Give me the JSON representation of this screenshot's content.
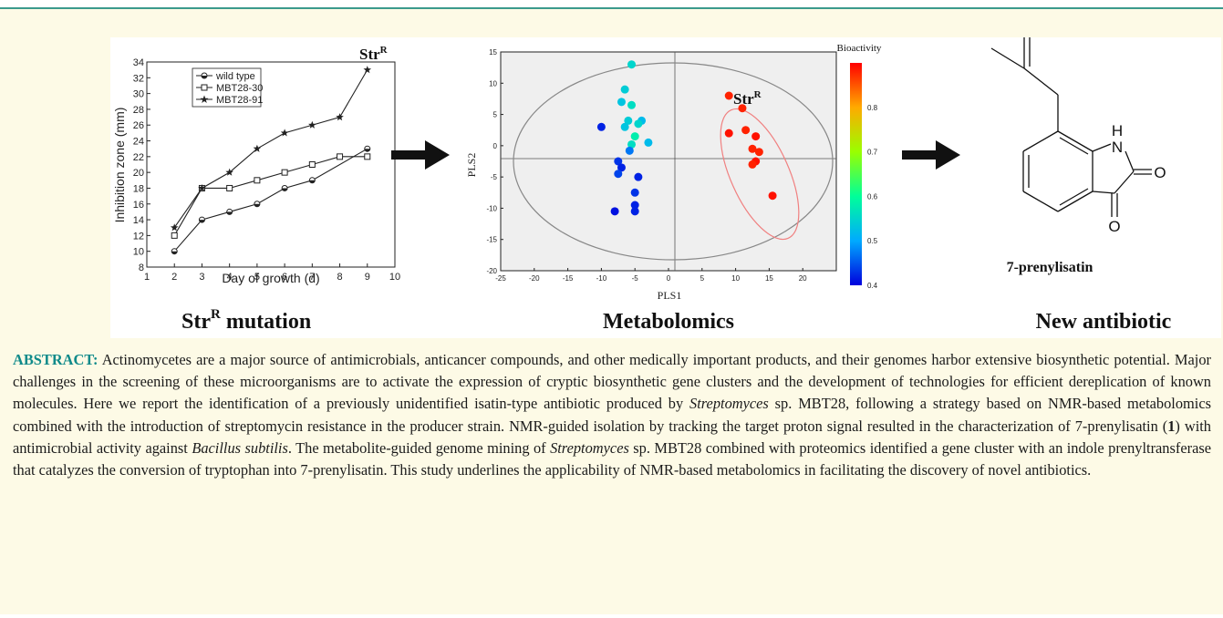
{
  "toc": {
    "panel_a": {
      "caption_main": "Str",
      "caption_sup": "R",
      "caption_rest": " mutation",
      "badge_main": "Str",
      "badge_sup": "R"
    },
    "panel_b": {
      "caption": "Metabolomics",
      "badge_main": "Str",
      "badge_sup": "R"
    },
    "panel_c": {
      "caption": "New antibiotic",
      "compound_name": "7-prenylisatin",
      "atom_H": "H",
      "atom_N": "N",
      "atom_O1": "O",
      "atom_O2": "O"
    }
  },
  "chart_data": [
    {
      "type": "line",
      "xlabel": "Day of growth (d)",
      "ylabel": "Inhibition zone (mm)",
      "xlim": [
        1,
        10
      ],
      "ylim": [
        8,
        34
      ],
      "xticks": [
        1,
        2,
        3,
        4,
        5,
        6,
        7,
        8,
        9,
        10
      ],
      "yticks": [
        8,
        10,
        12,
        14,
        16,
        18,
        20,
        22,
        24,
        26,
        28,
        30,
        32,
        34
      ],
      "legend": "top-left",
      "series": [
        {
          "name": "wild type",
          "marker": "half-circle",
          "x": [
            2,
            3,
            4,
            5,
            6,
            7,
            9
          ],
          "y": [
            10,
            14,
            15,
            16,
            18,
            19,
            23
          ]
        },
        {
          "name": "MBT28-30",
          "marker": "square",
          "x": [
            2,
            3,
            4,
            5,
            6,
            7,
            8,
            9
          ],
          "y": [
            12,
            18,
            18,
            19,
            20,
            21,
            22,
            22
          ]
        },
        {
          "name": "MBT28-91",
          "marker": "star",
          "x": [
            2,
            3,
            4,
            5,
            6,
            7,
            8,
            9
          ],
          "y": [
            13,
            18,
            20,
            23,
            25,
            26,
            27,
            33
          ]
        }
      ]
    },
    {
      "type": "scatter",
      "xlabel": "PLS1",
      "ylabel": "PLS2",
      "xlim": [
        -25,
        25
      ],
      "ylim": [
        -20,
        15
      ],
      "xticks": [
        -25,
        -20,
        -15,
        -10,
        -5,
        0,
        5,
        10,
        15,
        20
      ],
      "yticks": [
        -20,
        -15,
        -10,
        -5,
        0,
        5,
        10,
        15
      ],
      "colorbar": {
        "label": "Bioactivity",
        "min": 0.4,
        "max": 0.9,
        "ticks": [
          0.4,
          0.5,
          0.6,
          0.7,
          0.8
        ]
      },
      "points": [
        {
          "x": -5.5,
          "y": 13,
          "v": 0.55
        },
        {
          "x": -6.5,
          "y": 9,
          "v": 0.54
        },
        {
          "x": -7,
          "y": 7,
          "v": 0.53
        },
        {
          "x": -5.5,
          "y": 6.5,
          "v": 0.56
        },
        {
          "x": -4,
          "y": 4,
          "v": 0.52
        },
        {
          "x": -6,
          "y": 4,
          "v": 0.54
        },
        {
          "x": -4.5,
          "y": 3.5,
          "v": 0.55
        },
        {
          "x": -6.5,
          "y": 3,
          "v": 0.53
        },
        {
          "x": -3,
          "y": 0.5,
          "v": 0.52
        },
        {
          "x": -5,
          "y": 1.5,
          "v": 0.58
        },
        {
          "x": -5.5,
          "y": 0.2,
          "v": 0.56
        },
        {
          "x": -5.8,
          "y": -0.8,
          "v": 0.47
        },
        {
          "x": -10,
          "y": 3,
          "v": 0.42
        },
        {
          "x": -7.5,
          "y": -2.5,
          "v": 0.43
        },
        {
          "x": -7,
          "y": -3.5,
          "v": 0.42
        },
        {
          "x": -7.5,
          "y": -4.5,
          "v": 0.44
        },
        {
          "x": -4.5,
          "y": -5,
          "v": 0.42
        },
        {
          "x": -5,
          "y": -7.5,
          "v": 0.43
        },
        {
          "x": -5,
          "y": -9.5,
          "v": 0.42
        },
        {
          "x": -8,
          "y": -10.5,
          "v": 0.41
        },
        {
          "x": -5,
          "y": -10.5,
          "v": 0.42
        },
        {
          "x": 9,
          "y": 8,
          "v": 0.88
        },
        {
          "x": 11,
          "y": 6,
          "v": 0.88
        },
        {
          "x": 9,
          "y": 2,
          "v": 0.89
        },
        {
          "x": 11.5,
          "y": 2.5,
          "v": 0.88
        },
        {
          "x": 13,
          "y": 1.5,
          "v": 0.89
        },
        {
          "x": 12.5,
          "y": -0.5,
          "v": 0.88
        },
        {
          "x": 13.5,
          "y": -1,
          "v": 0.88
        },
        {
          "x": 13,
          "y": -2.5,
          "v": 0.89
        },
        {
          "x": 12.5,
          "y": -3,
          "v": 0.88
        },
        {
          "x": 15.5,
          "y": -8,
          "v": 0.89
        }
      ]
    }
  ],
  "abstract": {
    "lead": "ABSTRACT:",
    "p1": " Actinomycetes are a major source of antimicrobials, anticancer compounds, and other medically important products, and their genomes harbor extensive biosynthetic potential. Major challenges in the screening of these microorganisms are to activate the expression of cryptic biosynthetic gene clusters and the development of technologies for efficient dereplication of known molecules. Here we report the identification of a previously unidentified isatin-type antibiotic produced by ",
    "i1": "Streptomyces",
    "p2": " sp. MBT28, following a strategy based on NMR-based metabolomics combined with the introduction of streptomycin resistance in the producer strain. NMR-guided isolation by tracking the target proton signal resulted in the characterization of 7-prenylisatin (",
    "b1": "1",
    "p3": ") with antimicrobial activity against ",
    "i2": "Bacillus subtilis",
    "p4": ". The metabolite-guided genome mining of ",
    "i3": "Streptomyces",
    "p5": " sp. MBT28 combined with proteomics identified a gene cluster with an indole prenyltransferase that catalyzes the conversion of tryptophan into 7-prenylisatin. This study underlines the applicability of NMR-based metabolomics in facilitating the discovery of novel antibiotics."
  },
  "colors": {
    "border": "#3b9a8c",
    "background": "#fdfae6",
    "lead": "#0f8a8a",
    "ellipse_red": "#f08080"
  }
}
